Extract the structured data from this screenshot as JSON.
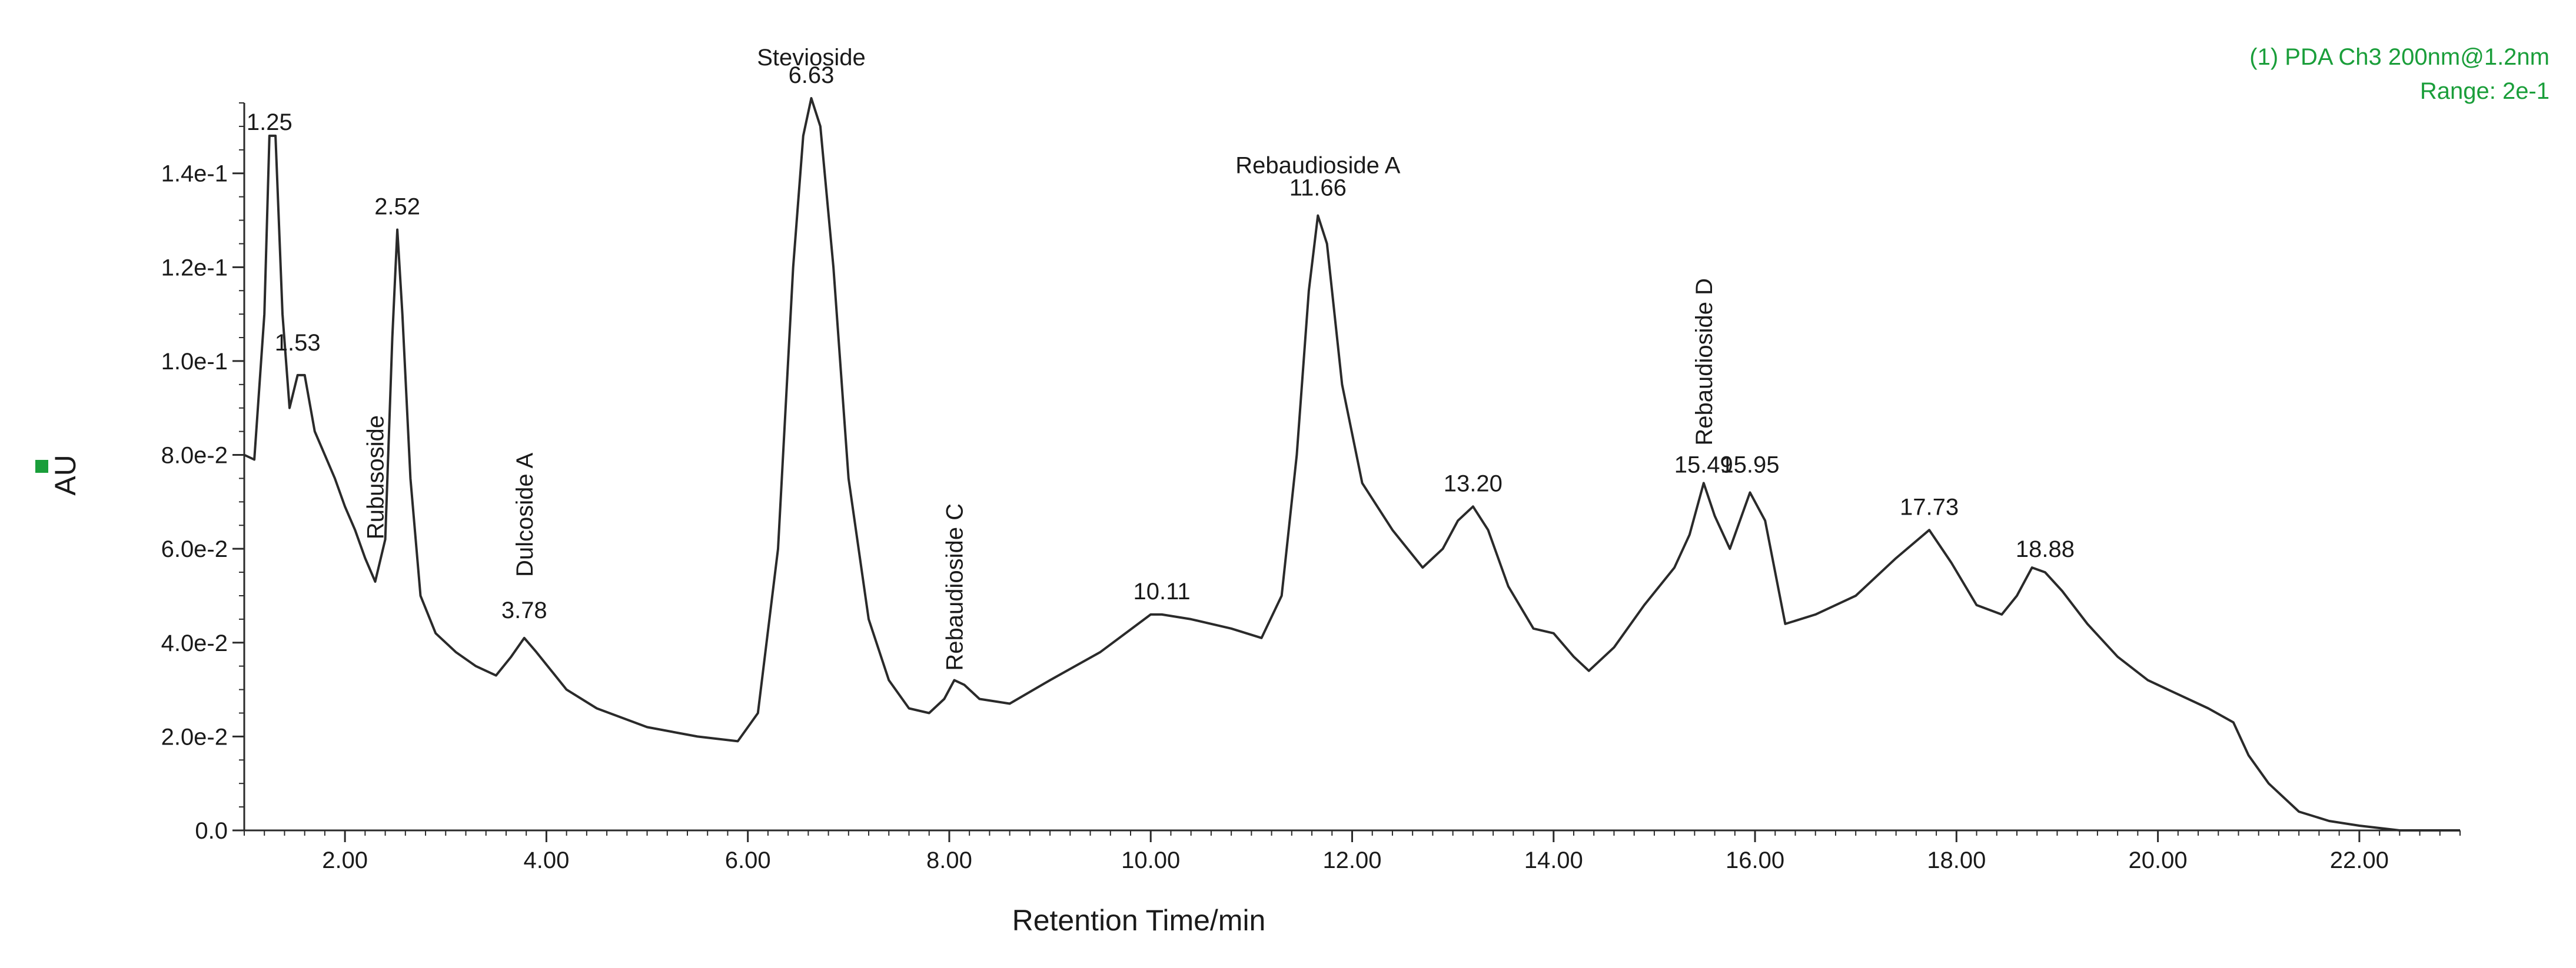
{
  "chart_data": {
    "type": "line",
    "title": "",
    "xlabel": "Retention Time/min",
    "ylabel": "AU",
    "xlim": [
      1.0,
      23.0
    ],
    "ylim": [
      0.0,
      0.155
    ],
    "grid": false,
    "line_color": "#2a2a2a",
    "legend_color": "#1a9e3a",
    "info_lines": [
      "(1) PDA Ch3 200nm@1.2nm",
      "Range: 2e-1"
    ],
    "x_ticks": [
      {
        "value": 2,
        "label": "2.00"
      },
      {
        "value": 4,
        "label": "4.00"
      },
      {
        "value": 6,
        "label": "6.00"
      },
      {
        "value": 8,
        "label": "8.00"
      },
      {
        "value": 10,
        "label": "10.00"
      },
      {
        "value": 12,
        "label": "12.00"
      },
      {
        "value": 14,
        "label": "14.00"
      },
      {
        "value": 16,
        "label": "16.00"
      },
      {
        "value": 18,
        "label": "18.00"
      },
      {
        "value": 20,
        "label": "20.00"
      },
      {
        "value": 22,
        "label": "22.00"
      }
    ],
    "y_ticks": [
      {
        "value": 0.0,
        "label": "0.0"
      },
      {
        "value": 0.02,
        "label": "2.0e-2"
      },
      {
        "value": 0.04,
        "label": "4.0e-2"
      },
      {
        "value": 0.06,
        "label": "6.0e-2"
      },
      {
        "value": 0.08,
        "label": "8.0e-2"
      },
      {
        "value": 0.1,
        "label": "1.0e-1"
      },
      {
        "value": 0.12,
        "label": "1.2e-1"
      },
      {
        "value": 0.14,
        "label": "1.4e-1"
      }
    ],
    "series": [
      {
        "name": "PDA Ch3 200nm",
        "x": [
          1.0,
          1.1,
          1.2,
          1.25,
          1.31,
          1.38,
          1.45,
          1.53,
          1.6,
          1.7,
          1.8,
          1.9,
          2.0,
          2.1,
          2.2,
          2.3,
          2.4,
          2.47,
          2.52,
          2.57,
          2.65,
          2.75,
          2.9,
          3.1,
          3.3,
          3.5,
          3.65,
          3.78,
          3.9,
          4.05,
          4.2,
          4.5,
          5.0,
          5.5,
          5.9,
          6.1,
          6.3,
          6.45,
          6.55,
          6.63,
          6.72,
          6.85,
          7.0,
          7.2,
          7.4,
          7.6,
          7.8,
          7.95,
          8.05,
          8.15,
          8.3,
          8.6,
          9.0,
          9.5,
          10.0,
          10.11,
          10.4,
          10.8,
          11.1,
          11.3,
          11.45,
          11.57,
          11.66,
          11.75,
          11.9,
          12.1,
          12.4,
          12.7,
          12.9,
          13.05,
          13.2,
          13.35,
          13.55,
          13.8,
          14.0,
          14.2,
          14.35,
          14.6,
          14.9,
          15.2,
          15.35,
          15.49,
          15.6,
          15.75,
          15.95,
          16.1,
          16.3,
          16.6,
          17.0,
          17.4,
          17.73,
          17.95,
          18.2,
          18.45,
          18.6,
          18.75,
          18.88,
          19.05,
          19.3,
          19.6,
          19.9,
          20.2,
          20.5,
          20.75,
          20.9,
          21.1,
          21.4,
          21.7,
          22.0,
          22.4,
          22.8,
          23.0
        ],
        "values": [
          0.08,
          0.079,
          0.11,
          0.148,
          0.148,
          0.11,
          0.09,
          0.097,
          0.097,
          0.085,
          0.08,
          0.075,
          0.069,
          0.064,
          0.058,
          0.053,
          0.062,
          0.105,
          0.128,
          0.11,
          0.075,
          0.05,
          0.042,
          0.038,
          0.035,
          0.033,
          0.037,
          0.041,
          0.038,
          0.034,
          0.03,
          0.026,
          0.022,
          0.02,
          0.019,
          0.025,
          0.06,
          0.12,
          0.148,
          0.156,
          0.15,
          0.12,
          0.075,
          0.045,
          0.032,
          0.026,
          0.025,
          0.028,
          0.032,
          0.031,
          0.028,
          0.027,
          0.032,
          0.038,
          0.046,
          0.046,
          0.045,
          0.043,
          0.041,
          0.05,
          0.08,
          0.115,
          0.131,
          0.125,
          0.095,
          0.074,
          0.064,
          0.056,
          0.06,
          0.066,
          0.069,
          0.064,
          0.052,
          0.043,
          0.042,
          0.037,
          0.034,
          0.039,
          0.048,
          0.056,
          0.063,
          0.074,
          0.067,
          0.06,
          0.072,
          0.066,
          0.044,
          0.046,
          0.05,
          0.058,
          0.064,
          0.057,
          0.048,
          0.046,
          0.05,
          0.056,
          0.055,
          0.051,
          0.044,
          0.037,
          0.032,
          0.029,
          0.026,
          0.023,
          0.016,
          0.01,
          0.004,
          0.002,
          0.001,
          0.0,
          0.0,
          0.0
        ]
      }
    ],
    "peak_labels": [
      {
        "text": "1.25",
        "x": 1.25,
        "y": 0.148
      },
      {
        "text": "1.53",
        "x": 1.53,
        "y": 0.101
      },
      {
        "text": "2.52",
        "x": 2.52,
        "y": 0.13
      },
      {
        "text": "3.78",
        "x": 3.78,
        "y": 0.044
      },
      {
        "text": "6.63",
        "x": 6.63,
        "y": 0.158
      },
      {
        "text": "10.11",
        "x": 10.11,
        "y": 0.048
      },
      {
        "text": "11.66",
        "x": 11.66,
        "y": 0.134
      },
      {
        "text": "13.20",
        "x": 13.2,
        "y": 0.071
      },
      {
        "text": "15.49",
        "x": 15.49,
        "y": 0.075
      },
      {
        "text": "15.95",
        "x": 15.95,
        "y": 0.075
      },
      {
        "text": "17.73",
        "x": 17.73,
        "y": 0.066
      },
      {
        "text": "18.88",
        "x": 18.88,
        "y": 0.057
      }
    ],
    "compound_labels": [
      {
        "text": "Stevioside",
        "x": 6.63,
        "y": 0.163,
        "orientation": "horizontal"
      },
      {
        "text": "Rebaudioside A",
        "x": 11.66,
        "y": 0.14,
        "orientation": "horizontal"
      },
      {
        "text": "Rubusoside",
        "x": 2.3,
        "y": 0.062,
        "orientation": "vertical"
      },
      {
        "text": "Dulcoside A",
        "x": 3.78,
        "y": 0.054,
        "orientation": "vertical"
      },
      {
        "text": "Rebaudioside C",
        "x": 8.05,
        "y": 0.034,
        "orientation": "vertical"
      },
      {
        "text": "Rebaudioside D",
        "x": 15.49,
        "y": 0.082,
        "orientation": "vertical"
      }
    ]
  }
}
